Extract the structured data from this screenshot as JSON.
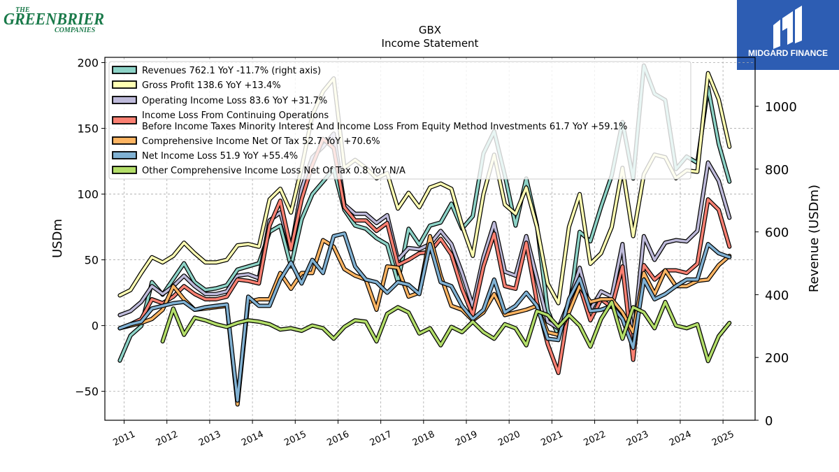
{
  "logos": {
    "left_line1": "THE",
    "left_line2": "GREENBRIER",
    "left_line3": "COMPANIES",
    "left_color": "#1a7a4a",
    "right_text": "MIDGARD FINANCE",
    "right_bg": "#2d5db3"
  },
  "chart_data": {
    "type": "line",
    "title": "GBX",
    "subtitle": "Income Statement",
    "ylabel": "USDm",
    "y2label": "Revenue (USDm)",
    "ylim": [
      -72,
      204
    ],
    "y2lim": [
      0,
      1156
    ],
    "yticks": [
      -50,
      0,
      50,
      100,
      150,
      200
    ],
    "y2ticks": [
      0,
      200,
      400,
      600,
      800,
      1000
    ],
    "xlim": [
      2010.55,
      2025.75
    ],
    "xticks": [
      "2011",
      "2012",
      "2013",
      "2014",
      "2015",
      "2016",
      "2017",
      "2018",
      "2019",
      "2020",
      "2021",
      "2022",
      "2023",
      "2024",
      "2025"
    ],
    "grid": true,
    "legend_position": "top-left",
    "series": [
      {
        "name": "Revenues",
        "legend": "Revenues  762.1 YoY -11.7% (right axis)",
        "axis": "right",
        "color": "#8dd3c7",
        "x": [
          2010.9,
          2011.15,
          2011.4,
          2011.65,
          2011.9,
          2012.15,
          2012.4,
          2012.65,
          2012.9,
          2013.15,
          2013.4,
          2013.65,
          2013.9,
          2014.15,
          2014.4,
          2014.65,
          2014.9,
          2015.15,
          2015.4,
          2015.65,
          2015.9,
          2016.15,
          2016.4,
          2016.65,
          2016.9,
          2017.15,
          2017.4,
          2017.65,
          2017.9,
          2018.15,
          2018.4,
          2018.65,
          2018.9,
          2019.15,
          2019.4,
          2019.65,
          2019.9,
          2020.15,
          2020.4,
          2020.65,
          2020.9,
          2021.15,
          2021.4,
          2021.65,
          2021.9,
          2022.15,
          2022.4,
          2022.65,
          2022.9,
          2023.15,
          2023.4,
          2023.65,
          2023.9,
          2024.15,
          2024.4,
          2024.65,
          2024.9,
          2025.15
        ],
        "y": [
          190,
          270,
          300,
          440,
          400,
          450,
          500,
          440,
          415,
          420,
          430,
          480,
          490,
          500,
          600,
          620,
          490,
          640,
          720,
          760,
          800,
          670,
          620,
          610,
          580,
          560,
          440,
          610,
          560,
          620,
          630,
          690,
          610,
          650,
          850,
          920,
          780,
          620,
          770,
          620,
          350,
          270,
          350,
          600,
          570,
          680,
          780,
          950,
          770,
          1130,
          1040,
          1020,
          800,
          840,
          820,
          1060,
          880,
          760
        ]
      },
      {
        "name": "Gross Profit",
        "legend": "Gross Profit  138.6 YoY +13.4%",
        "axis": "left",
        "color": "#ffffb3",
        "x": [
          2010.9,
          2011.15,
          2011.4,
          2011.65,
          2011.9,
          2012.15,
          2012.4,
          2012.65,
          2012.9,
          2013.15,
          2013.4,
          2013.65,
          2013.9,
          2014.15,
          2014.4,
          2014.65,
          2014.9,
          2015.15,
          2015.4,
          2015.65,
          2015.9,
          2016.15,
          2016.4,
          2016.65,
          2016.9,
          2017.15,
          2017.4,
          2017.65,
          2017.9,
          2018.15,
          2018.4,
          2018.65,
          2018.9,
          2019.15,
          2019.4,
          2019.65,
          2019.9,
          2020.15,
          2020.4,
          2020.65,
          2020.9,
          2021.15,
          2021.4,
          2021.65,
          2021.9,
          2022.15,
          2022.4,
          2022.65,
          2022.9,
          2023.15,
          2023.4,
          2023.65,
          2023.9,
          2024.15,
          2024.4,
          2024.65,
          2024.9,
          2025.15
        ],
        "y": [
          23,
          27,
          40,
          52,
          48,
          53,
          63,
          55,
          48,
          48,
          50,
          61,
          62,
          60,
          96,
          104,
          86,
          120,
          160,
          178,
          188,
          120,
          126,
          120,
          112,
          116,
          89,
          101,
          90,
          105,
          108,
          104,
          76,
          53,
          100,
          130,
          92,
          85,
          105,
          75,
          32,
          17,
          75,
          100,
          47,
          55,
          75,
          120,
          68,
          115,
          130,
          128,
          112,
          118,
          117,
          192,
          172,
          136
        ]
      },
      {
        "name": "Operating Income Loss",
        "legend": "Operating Income Loss  83.6 YoY +31.7%",
        "axis": "left",
        "color": "#bebada",
        "x": [
          2010.9,
          2011.15,
          2011.4,
          2011.65,
          2011.9,
          2012.15,
          2012.4,
          2012.65,
          2012.9,
          2013.15,
          2013.4,
          2013.65,
          2013.9,
          2014.15,
          2014.4,
          2014.65,
          2014.9,
          2015.15,
          2015.4,
          2015.65,
          2015.9,
          2016.15,
          2016.4,
          2016.65,
          2016.9,
          2017.15,
          2017.4,
          2017.65,
          2017.9,
          2018.15,
          2018.4,
          2018.65,
          2018.9,
          2019.15,
          2019.4,
          2019.65,
          2019.9,
          2020.15,
          2020.4,
          2020.65,
          2020.9,
          2021.15,
          2021.4,
          2021.65,
          2021.9,
          2022.15,
          2022.4,
          2022.65,
          2022.9,
          2023.15,
          2023.4,
          2023.65,
          2023.9,
          2024.15,
          2024.4,
          2024.65,
          2024.9,
          2025.15
        ],
        "y": [
          8,
          11,
          18,
          30,
          24,
          30,
          38,
          30,
          24,
          24,
          26,
          38,
          39,
          36,
          80,
          86,
          58,
          104,
          128,
          136,
          146,
          92,
          85,
          85,
          78,
          84,
          50,
          59,
          58,
          62,
          72,
          62,
          40,
          15,
          52,
          78,
          41,
          38,
          68,
          36,
          3,
          -2,
          18,
          44,
          12,
          26,
          22,
          62,
          -12,
          68,
          50,
          63,
          65,
          64,
          72,
          124,
          110,
          82
        ]
      },
      {
        "name": "Income Loss From Continuing Operations Before Income Taxes Minority Interest And Income Loss From Equity Method Investments",
        "legend_line1": "Income Loss From Continuing Operations",
        "legend_line2": "Before Income Taxes Minority Interest And Income Loss From Equity Method Investments  61.7 YoY +59.1%",
        "axis": "left",
        "color": "#fb8072",
        "x": [
          2010.9,
          2011.15,
          2011.4,
          2011.65,
          2011.9,
          2012.15,
          2012.4,
          2012.65,
          2012.9,
          2013.15,
          2013.4,
          2013.65,
          2013.9,
          2014.15,
          2014.4,
          2014.65,
          2014.9,
          2015.15,
          2015.4,
          2015.65,
          2015.9,
          2016.15,
          2016.4,
          2016.65,
          2016.9,
          2017.15,
          2017.4,
          2017.65,
          2017.9,
          2018.15,
          2018.4,
          2018.65,
          2018.9,
          2019.15,
          2019.4,
          2019.65,
          2019.9,
          2020.15,
          2020.4,
          2020.65,
          2020.9,
          2021.15,
          2021.4,
          2021.65,
          2021.9,
          2022.15,
          2022.4,
          2022.65,
          2022.9,
          2023.15,
          2023.4,
          2023.65,
          2023.9,
          2024.15,
          2024.4,
          2024.65,
          2024.9,
          2025.15
        ],
        "y": [
          -2,
          1,
          5,
          20,
          17,
          22,
          30,
          24,
          20,
          20,
          22,
          35,
          34,
          32,
          76,
          95,
          58,
          96,
          122,
          142,
          135,
          90,
          80,
          80,
          72,
          78,
          46,
          50,
          55,
          56,
          66,
          54,
          28,
          8,
          45,
          70,
          30,
          28,
          63,
          18,
          -14,
          -36,
          14,
          30,
          4,
          20,
          14,
          45,
          -26,
          46,
          35,
          42,
          42,
          40,
          47,
          96,
          88,
          60
        ]
      },
      {
        "name": "Comprehensive Income Net Of Tax",
        "legend": "Comprehensive Income Net Of Tax  52.7 YoY +70.6%",
        "axis": "left",
        "color": "#fdb462",
        "x": [
          2010.9,
          2011.15,
          2011.4,
          2011.65,
          2011.9,
          2012.15,
          2012.4,
          2012.65,
          2012.9,
          2013.15,
          2013.4,
          2013.65,
          2013.9,
          2014.15,
          2014.4,
          2014.65,
          2014.9,
          2015.15,
          2015.4,
          2015.65,
          2015.9,
          2016.15,
          2016.4,
          2016.65,
          2016.9,
          2017.15,
          2017.4,
          2017.65,
          2017.9,
          2018.15,
          2018.4,
          2018.65,
          2018.9,
          2019.15,
          2019.4,
          2019.65,
          2019.9,
          2020.15,
          2020.4,
          2020.65,
          2020.9,
          2021.15,
          2021.4,
          2021.65,
          2021.9,
          2022.15,
          2022.4,
          2022.65,
          2022.9,
          2023.15,
          2023.4,
          2023.65,
          2023.9,
          2024.15,
          2024.4,
          2024.65,
          2024.9,
          2025.15
        ],
        "y": [
          -2,
          0,
          2,
          5,
          12,
          30,
          20,
          12,
          13,
          14,
          15,
          -60,
          18,
          20,
          20,
          40,
          28,
          40,
          40,
          65,
          60,
          43,
          38,
          35,
          12,
          45,
          44,
          22,
          25,
          68,
          38,
          15,
          12,
          4,
          10,
          24,
          8,
          10,
          12,
          15,
          -5,
          -7,
          10,
          30,
          18,
          20,
          20,
          10,
          -5,
          40,
          24,
          42,
          30,
          30,
          34,
          35,
          46,
          53
        ]
      },
      {
        "name": "Net Income Loss",
        "legend": "Net Income Loss  51.9 YoY +55.4%",
        "axis": "left",
        "color": "#80b1d3",
        "x": [
          2010.9,
          2011.15,
          2011.4,
          2011.65,
          2011.9,
          2012.15,
          2012.4,
          2012.65,
          2012.9,
          2013.15,
          2013.4,
          2013.65,
          2013.9,
          2014.15,
          2014.4,
          2014.65,
          2014.9,
          2015.15,
          2015.4,
          2015.65,
          2015.9,
          2016.15,
          2016.4,
          2016.65,
          2016.9,
          2017.15,
          2017.4,
          2017.65,
          2017.9,
          2018.15,
          2018.4,
          2018.65,
          2018.9,
          2019.15,
          2019.4,
          2019.65,
          2019.9,
          2020.15,
          2020.4,
          2020.65,
          2020.9,
          2021.15,
          2021.4,
          2021.65,
          2021.9,
          2022.15,
          2022.4,
          2022.65,
          2022.9,
          2023.15,
          2023.4,
          2023.65,
          2023.9,
          2024.15,
          2024.4,
          2024.65,
          2024.9,
          2025.15
        ],
        "y": [
          -2,
          1,
          3,
          13,
          15,
          17,
          18,
          12,
          14,
          15,
          16,
          -57,
          22,
          15,
          15,
          35,
          48,
          32,
          50,
          40,
          68,
          70,
          45,
          35,
          33,
          25,
          33,
          31,
          24,
          62,
          33,
          30,
          15,
          5,
          12,
          35,
          10,
          15,
          25,
          15,
          -10,
          -11,
          20,
          36,
          11,
          12,
          15,
          5,
          -17,
          35,
          20,
          24,
          30,
          35,
          35,
          62,
          55,
          52
        ]
      },
      {
        "name": "Other Comprehensive Income Loss Net Of Tax",
        "legend": "Other Comprehensive Income Loss Net Of Tax  0.8 YoY N/A",
        "axis": "left",
        "color": "#b3de69",
        "x": [
          2011.9,
          2012.15,
          2012.4,
          2012.65,
          2012.9,
          2013.15,
          2013.4,
          2013.65,
          2013.9,
          2014.15,
          2014.4,
          2014.65,
          2014.9,
          2015.15,
          2015.4,
          2015.65,
          2015.9,
          2016.15,
          2016.4,
          2016.65,
          2016.9,
          2017.15,
          2017.4,
          2017.65,
          2017.9,
          2018.15,
          2018.4,
          2018.65,
          2018.9,
          2019.15,
          2019.4,
          2019.65,
          2019.9,
          2020.15,
          2020.4,
          2020.65,
          2020.9,
          2021.15,
          2021.4,
          2021.65,
          2021.9,
          2022.15,
          2022.4,
          2022.65,
          2022.9,
          2023.15,
          2023.4,
          2023.65,
          2023.9,
          2024.15,
          2024.4,
          2024.65,
          2024.9,
          2025.15
        ],
        "y": [
          -12,
          13,
          -7,
          6,
          4,
          1,
          -1,
          2,
          4,
          3,
          1,
          -3,
          -2,
          -4,
          0,
          -2,
          -10,
          -1,
          4,
          3,
          -12,
          9,
          14,
          10,
          -6,
          -2,
          -15,
          -1,
          -5,
          3,
          -5,
          -10,
          1,
          -2,
          -15,
          11,
          8,
          -1,
          8,
          0,
          -16,
          5,
          18,
          -10,
          14,
          10,
          -2,
          18,
          0,
          -2,
          1,
          -27,
          -8,
          2
        ]
      }
    ]
  }
}
